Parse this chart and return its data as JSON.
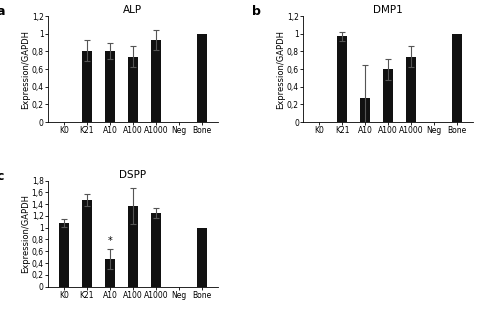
{
  "categories": [
    "K0",
    "K21",
    "A10",
    "A100",
    "A1000",
    "Neg",
    "Bone"
  ],
  "alp": {
    "title": "ALP",
    "values": [
      0.0,
      0.81,
      0.81,
      0.74,
      0.93,
      0.0,
      1.0
    ],
    "errors": [
      0.0,
      0.12,
      0.09,
      0.12,
      0.11,
      0.0,
      0.0
    ],
    "ylim": [
      0,
      1.2
    ],
    "yticks": [
      0,
      0.2,
      0.4,
      0.6,
      0.8,
      1.0,
      1.2
    ],
    "yticklabels": [
      "0",
      "0,2",
      "0,4",
      "0,6",
      "0,8",
      "1",
      "1,2"
    ]
  },
  "dmp1": {
    "title": "DMP1",
    "values": [
      0.0,
      0.97,
      0.27,
      0.6,
      0.74,
      0.0,
      1.0
    ],
    "errors": [
      0.0,
      0.05,
      0.38,
      0.12,
      0.12,
      0.0,
      0.0
    ],
    "ylim": [
      0,
      1.2
    ],
    "yticks": [
      0,
      0.2,
      0.4,
      0.6,
      0.8,
      1.0,
      1.2
    ],
    "yticklabels": [
      "0",
      "0,2",
      "0,4",
      "0,6",
      "0,8",
      "1",
      "1,2"
    ]
  },
  "dspp": {
    "title": "DSPP",
    "values": [
      1.08,
      1.47,
      0.47,
      1.37,
      1.25,
      0.0,
      1.0
    ],
    "errors": [
      0.07,
      0.1,
      0.17,
      0.3,
      0.08,
      0.0,
      0.0
    ],
    "ylim": [
      0,
      1.8
    ],
    "yticks": [
      0,
      0.2,
      0.4,
      0.6,
      0.8,
      1.0,
      1.2,
      1.4,
      1.6,
      1.8
    ],
    "yticklabels": [
      "0",
      "0,2",
      "0,4",
      "0,6",
      "0,8",
      "1",
      "1,2",
      "1,4",
      "1,6",
      "1,8"
    ],
    "star_index": 2
  },
  "bar_color": "#111111",
  "error_color": "#555555",
  "ylabel": "Expression/GAPDH",
  "label_fontsize": 6,
  "tick_fontsize": 5.5,
  "title_fontsize": 7.5,
  "panel_label_fontsize": 9,
  "bar_width": 0.45
}
